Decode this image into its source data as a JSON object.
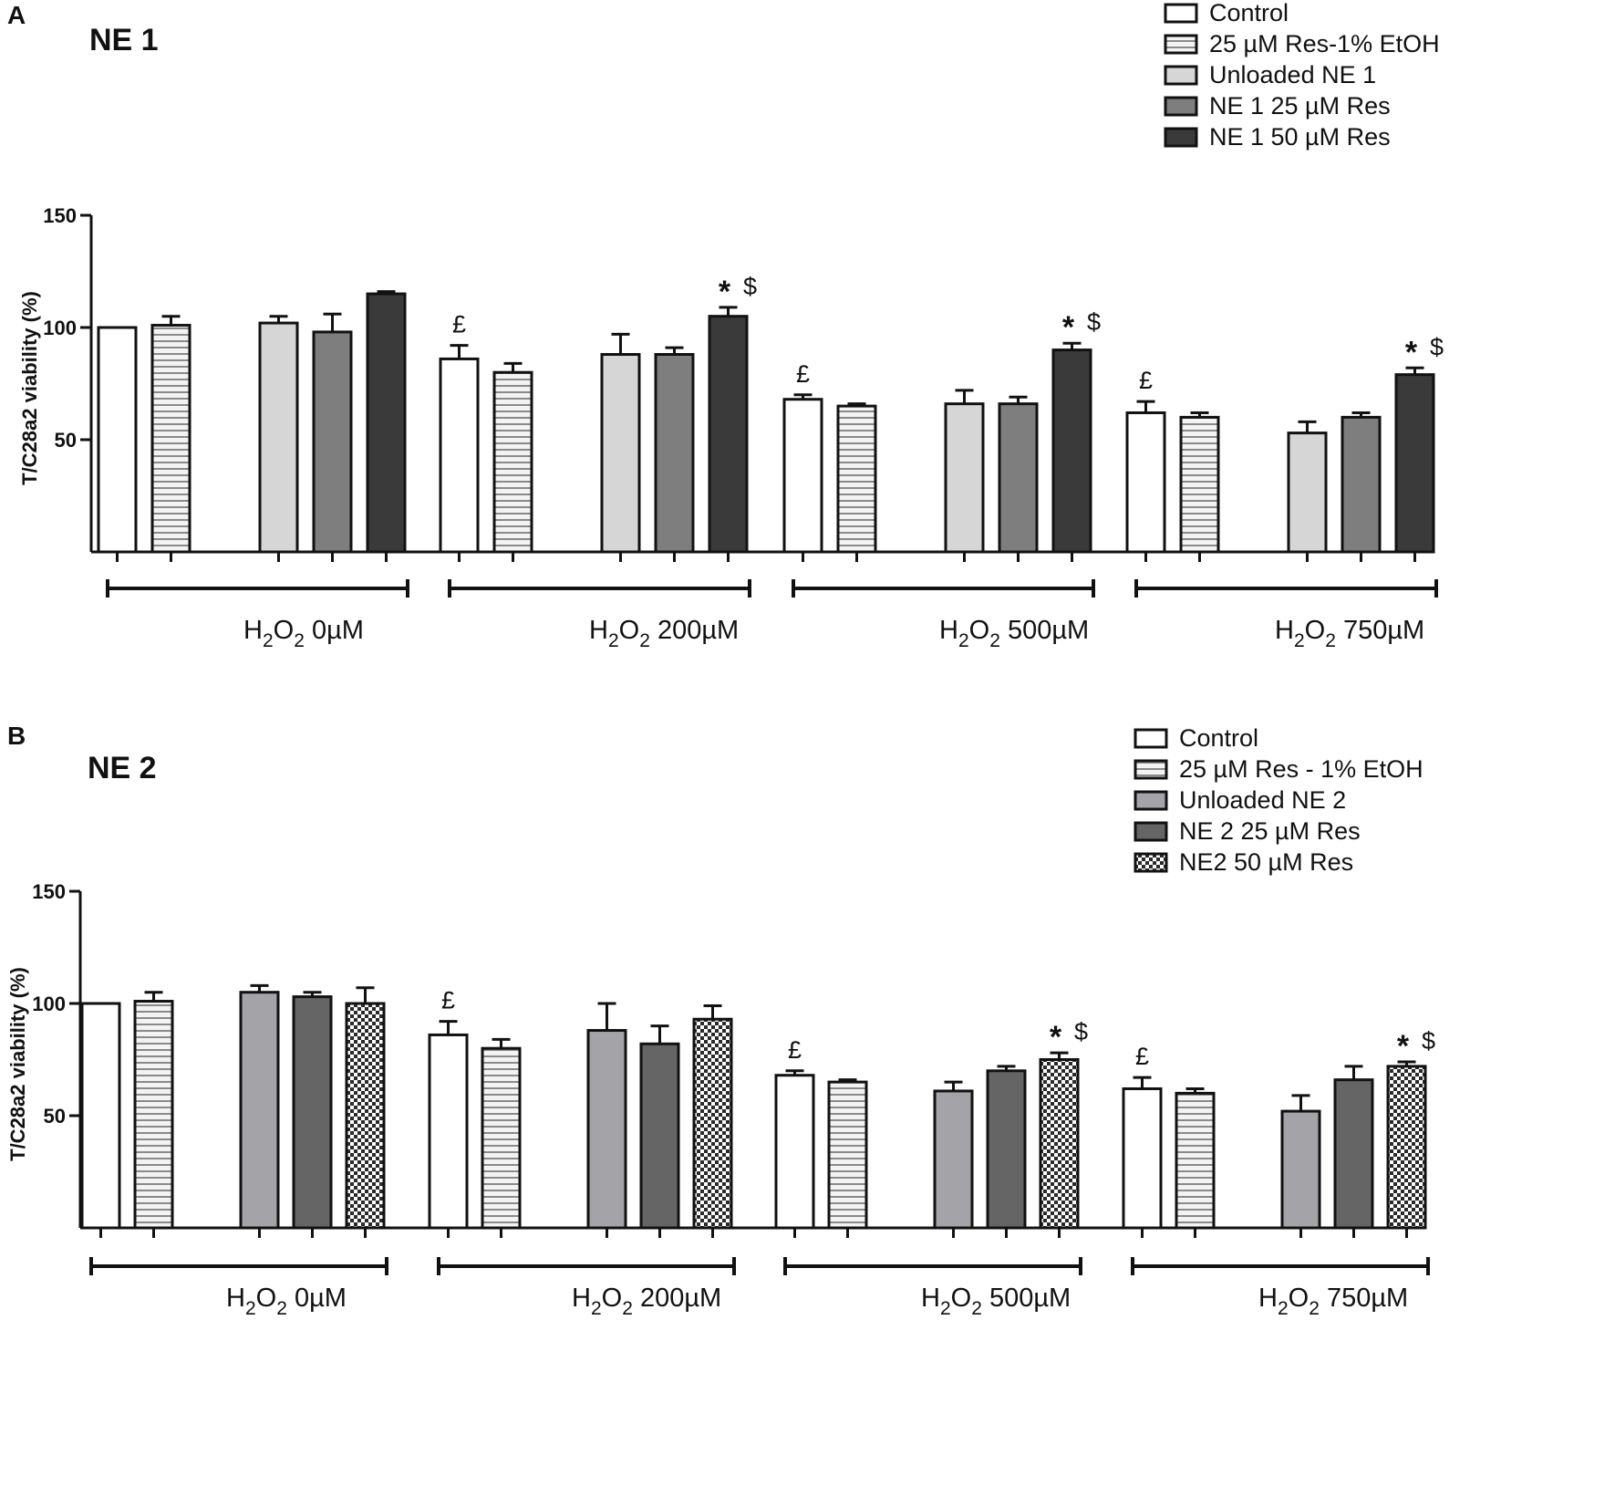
{
  "chart_data": [
    {
      "panel": "A",
      "title": "NE 1",
      "type": "bar",
      "ylabel": "T/C28a2 viability  (%)",
      "ylim": [
        0,
        150
      ],
      "yticks": [
        "50",
        "100",
        "150"
      ],
      "categories": [
        {
          "main": "H",
          "sub1": "2",
          "mid": "O",
          "sub2": "2",
          "rest": " 0µM"
        },
        {
          "main": "H",
          "sub1": "2",
          "mid": "O",
          "sub2": "2",
          "rest": " 200µM"
        },
        {
          "main": "H",
          "sub1": "2",
          "mid": "O",
          "sub2": "2",
          "rest": " 500µM"
        },
        {
          "main": "H",
          "sub1": "2",
          "mid": "O",
          "sub2": "2",
          "rest": " 750µM"
        }
      ],
      "series": [
        {
          "name": "Control",
          "pattern": "white",
          "values": [
            100,
            86,
            68,
            62
          ],
          "errors": [
            0,
            6,
            2,
            5
          ]
        },
        {
          "name": "25 µM Res-1% EtOH",
          "pattern": "hstripe",
          "values": [
            101,
            80,
            65,
            60
          ],
          "errors": [
            4,
            4,
            1,
            2
          ]
        },
        {
          "name": "Unloaded NE 1",
          "pattern": "light",
          "values": [
            102,
            88,
            66,
            53
          ],
          "errors": [
            3,
            9,
            6,
            5
          ]
        },
        {
          "name": "NE 1 25 µM Res",
          "pattern": "mid",
          "values": [
            98,
            88,
            66,
            60
          ],
          "errors": [
            8,
            3,
            3,
            2
          ]
        },
        {
          "name": "NE 1 50 µM Res",
          "pattern": "dark",
          "values": [
            115,
            105,
            90,
            79
          ],
          "errors": [
            1,
            4,
            3,
            3
          ]
        }
      ],
      "annotations": [
        {
          "group": 1,
          "series": 0,
          "star": "",
          "symbol": "£"
        },
        {
          "group": 1,
          "series": 4,
          "star": "*",
          "symbol": "$"
        },
        {
          "group": 2,
          "series": 0,
          "star": "",
          "symbol": "£"
        },
        {
          "group": 2,
          "series": 4,
          "star": "*",
          "symbol": "$"
        },
        {
          "group": 3,
          "series": 0,
          "star": "",
          "symbol": "£"
        },
        {
          "group": 3,
          "series": 4,
          "star": "*",
          "symbol": "$"
        }
      ]
    },
    {
      "panel": "B",
      "title": "NE 2",
      "type": "bar",
      "ylabel": "T/C28a2 viability  (%)",
      "ylim": [
        0,
        150
      ],
      "yticks": [
        "50",
        "100",
        "150"
      ],
      "categories": [
        {
          "main": "H",
          "sub1": "2",
          "mid": "O",
          "sub2": "2",
          "rest": " 0µM"
        },
        {
          "main": "H",
          "sub1": "2",
          "mid": "O",
          "sub2": "2",
          "rest": " 200µM"
        },
        {
          "main": "H",
          "sub1": "2",
          "mid": "O",
          "sub2": "2",
          "rest": " 500µM"
        },
        {
          "main": "H",
          "sub1": "2",
          "mid": "O",
          "sub2": "2",
          "rest": " 750µM"
        }
      ],
      "series": [
        {
          "name": "Control",
          "pattern": "white",
          "values": [
            100,
            86,
            68,
            62
          ],
          "errors": [
            0,
            6,
            2,
            5
          ]
        },
        {
          "name": "25 µM Res - 1% EtOH",
          "pattern": "hstripe",
          "values": [
            101,
            80,
            65,
            60
          ],
          "errors": [
            4,
            4,
            1,
            2
          ]
        },
        {
          "name": "Unloaded NE 2",
          "pattern": "midlight",
          "values": [
            105,
            88,
            61,
            52
          ],
          "errors": [
            3,
            12,
            4,
            7
          ]
        },
        {
          "name": "NE 2 25 µM Res",
          "pattern": "middark",
          "values": [
            103,
            82,
            70,
            66
          ],
          "errors": [
            2,
            8,
            2,
            6
          ]
        },
        {
          "name": "NE2 50 µM Res",
          "pattern": "checker",
          "values": [
            100,
            93,
            75,
            72
          ],
          "errors": [
            7,
            6,
            3,
            2
          ]
        }
      ],
      "annotations": [
        {
          "group": 1,
          "series": 0,
          "star": "",
          "symbol": "£"
        },
        {
          "group": 2,
          "series": 0,
          "star": "",
          "symbol": "£"
        },
        {
          "group": 2,
          "series": 4,
          "star": "*",
          "symbol": "$"
        },
        {
          "group": 3,
          "series": 0,
          "star": "",
          "symbol": "£"
        },
        {
          "group": 3,
          "series": 4,
          "star": "*",
          "symbol": "$"
        }
      ]
    }
  ],
  "colors": {
    "white": "#ffffff",
    "hstripe_bg": "#f3f3f3",
    "hstripe_line": "#8a8a8a",
    "light": "#d6d6d6",
    "mid": "#7e7e7e",
    "dark": "#3a3a3a",
    "midlight": "#a4a4a8",
    "middark": "#656565",
    "checker_a": "#ffffff",
    "checker_b": "#2a2a2a",
    "stroke": "#111111"
  }
}
